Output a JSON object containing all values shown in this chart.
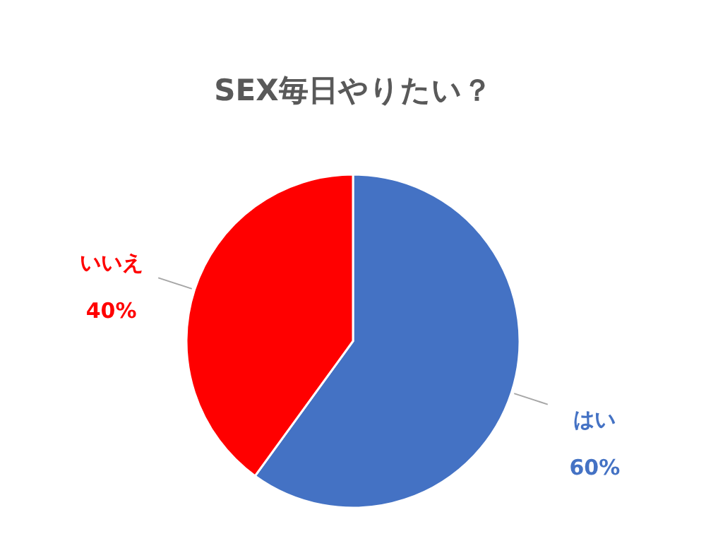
{
  "chart_data": {
    "type": "pie",
    "title": "SEX毎日やりたい？",
    "categories": [
      "はい",
      "いいえ"
    ],
    "values": [
      60,
      40
    ],
    "colors": [
      "#4472c4",
      "#ff0000"
    ],
    "value_labels": [
      "60%",
      "40%"
    ]
  }
}
